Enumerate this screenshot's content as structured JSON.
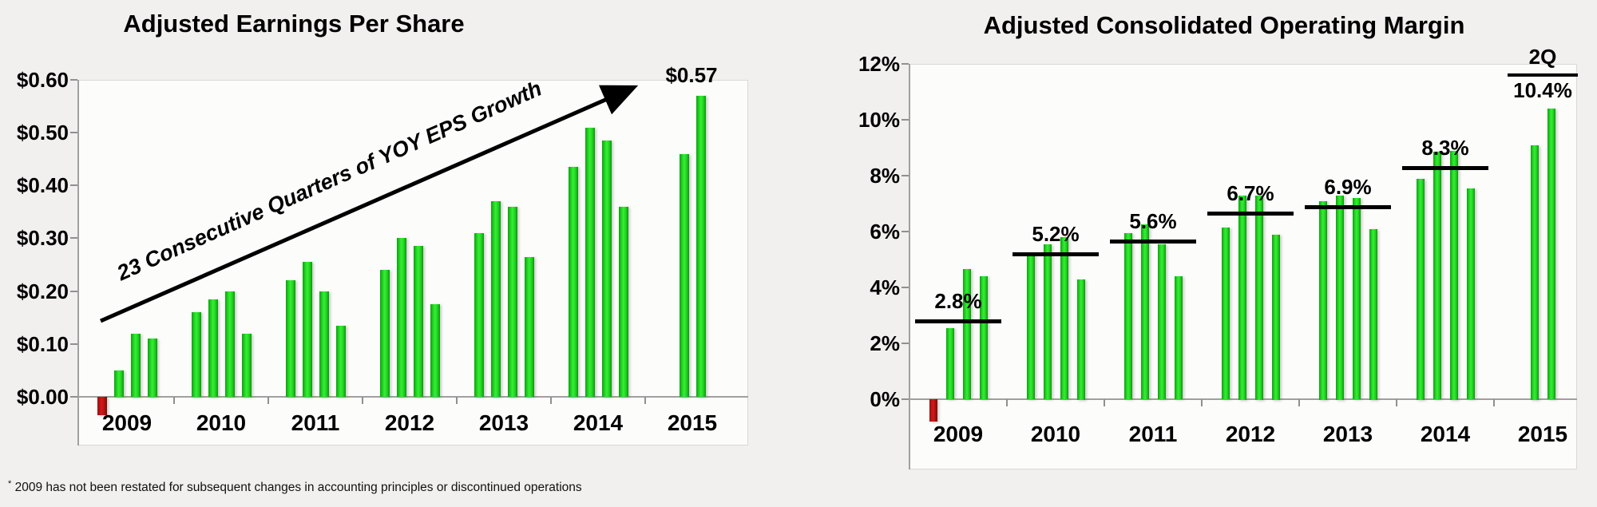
{
  "page": {
    "footnote_marker": "*",
    "footnote": "2009 has not been restated for subsequent changes in accounting principles or discontinued operations"
  },
  "colors": {
    "bar_green": "#1fd01f",
    "bar_red": "#c51414",
    "annotation_black": "#000000",
    "axis_gray": "#a0a0a0",
    "plot_background": "#fcfcfa",
    "page_background": "#f1f0ee"
  },
  "chart_data": [
    {
      "type": "bar",
      "title": "Adjusted Earnings Per Share",
      "xlabel": "",
      "ylabel": "",
      "ylim": [
        -0.05,
        0.62
      ],
      "grid": false,
      "legend": false,
      "yticks": [
        "$0.60",
        "$0.50",
        "$0.40",
        "$0.30",
        "$0.20",
        "$0.10",
        "$0.00"
      ],
      "ytick_values": [
        0.6,
        0.5,
        0.4,
        0.3,
        0.2,
        0.1,
        0.0
      ],
      "categories": [
        "2009",
        "2010",
        "2011",
        "2012",
        "2013",
        "2014",
        "2015"
      ],
      "bar_meaning": "quarterly adjusted EPS in dollars; first 2009 quarter is negative and drawn red",
      "groups": [
        {
          "year": "2009",
          "values": [
            -0.035,
            0.05,
            0.12,
            0.11
          ]
        },
        {
          "year": "2010",
          "values": [
            0.16,
            0.185,
            0.2,
            0.12
          ]
        },
        {
          "year": "2011",
          "values": [
            0.22,
            0.255,
            0.2,
            0.135
          ]
        },
        {
          "year": "2012",
          "values": [
            0.24,
            0.3,
            0.285,
            0.175
          ]
        },
        {
          "year": "2013",
          "values": [
            0.31,
            0.37,
            0.36,
            0.265
          ]
        },
        {
          "year": "2014",
          "values": [
            0.435,
            0.51,
            0.485,
            0.36
          ]
        },
        {
          "year": "2015",
          "values": [
            0.46,
            0.57
          ]
        }
      ],
      "annotations": {
        "arrow_text": "23 Consecutive Quarters of YOY EPS Growth",
        "peak_label": "$0.57"
      }
    },
    {
      "type": "bar",
      "title": "Adjusted Consolidated Operating Margin",
      "xlabel": "",
      "ylabel": "",
      "ylim": [
        -1,
        12
      ],
      "grid": false,
      "legend": false,
      "yticks": [
        "12%",
        "10%",
        "8%",
        "6%",
        "4%",
        "2%",
        "0%"
      ],
      "ytick_values": [
        12,
        10,
        8,
        6,
        4,
        2,
        0
      ],
      "categories": [
        "2009",
        "2010",
        "2011",
        "2012",
        "2013",
        "2014",
        "2015"
      ],
      "bar_meaning": "quarterly operating margin in percent; first 2009 quarter is negative and drawn red; black line = yearly average",
      "groups": [
        {
          "year": "2009",
          "values": [
            -0.8,
            2.55,
            4.65,
            4.4
          ],
          "avg_value": 2.8,
          "avg_label": "2.8%"
        },
        {
          "year": "2010",
          "values": [
            5.2,
            5.55,
            5.8,
            4.3
          ],
          "avg_value": 5.2,
          "avg_label": "5.2%"
        },
        {
          "year": "2011",
          "values": [
            5.95,
            6.25,
            5.55,
            4.4
          ],
          "avg_value": 5.65,
          "avg_label": "5.6%"
        },
        {
          "year": "2012",
          "values": [
            6.15,
            7.3,
            7.3,
            5.9
          ],
          "avg_value": 6.65,
          "avg_label": "6.7%"
        },
        {
          "year": "2013",
          "values": [
            7.1,
            7.3,
            7.2,
            6.1
          ],
          "avg_value": 6.9,
          "avg_label": "6.9%"
        },
        {
          "year": "2014",
          "values": [
            7.9,
            8.85,
            8.9,
            7.55
          ],
          "avg_value": 8.3,
          "avg_label": "8.3%"
        },
        {
          "year": "2015",
          "values": [
            9.1,
            10.4
          ],
          "quarter_label": "2Q",
          "value_label": "10.4%"
        }
      ]
    }
  ]
}
